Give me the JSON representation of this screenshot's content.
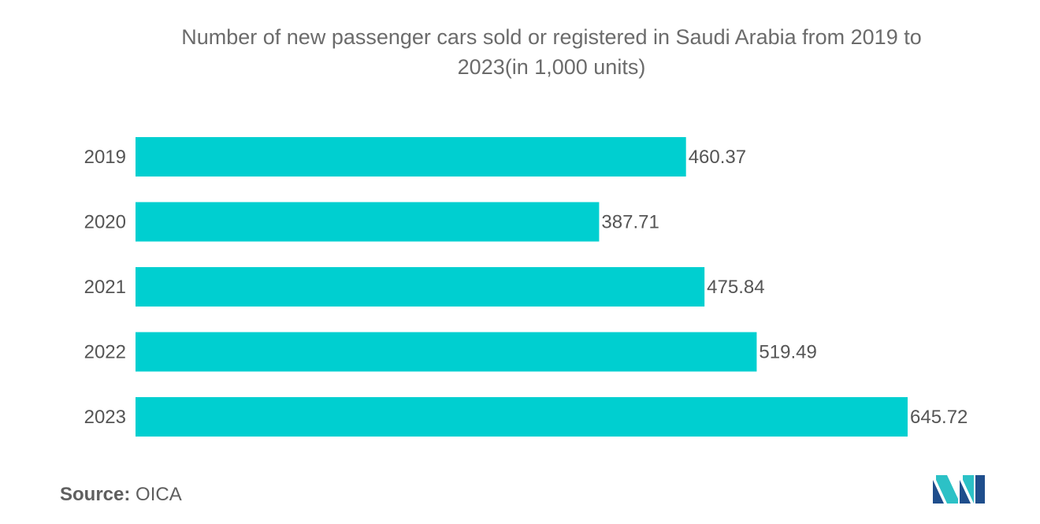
{
  "chart_data": {
    "type": "bar",
    "orientation": "horizontal",
    "title": "Number of new passenger cars sold or registered in Saudi Arabia from 2019 to 2023(in 1,000 units)",
    "categories": [
      "2019",
      "2020",
      "2021",
      "2022",
      "2023"
    ],
    "values": [
      460.37,
      387.71,
      475.84,
      519.49,
      645.72
    ],
    "value_labels": [
      "460.37",
      "387.71",
      "475.84",
      "519.49",
      "645.72"
    ],
    "xlim": [
      0,
      645.72
    ],
    "grid": false,
    "legend": "none",
    "bar_color": "#00cfd0"
  },
  "title_line1": "Number of new passenger cars sold or registered in Saudi Arabia from 2019 to",
  "title_line2": "2023(in 1,000 units)",
  "footer": {
    "source_label": "Source:",
    "source_value": "OICA"
  },
  "logo": {
    "icon": "mordor-intelligence-logo",
    "colors": [
      "#1f4e8c",
      "#2cc1c6"
    ]
  }
}
